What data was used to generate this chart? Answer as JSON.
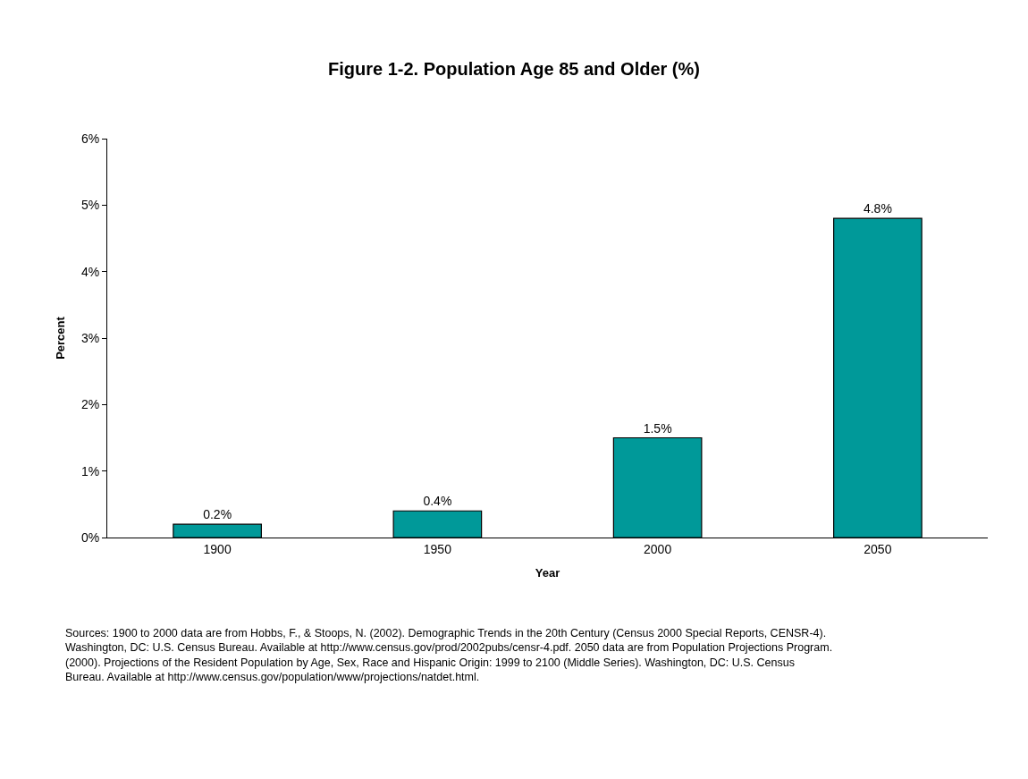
{
  "chart_data": {
    "type": "bar",
    "title": "Figure 1-2. Population Age 85 and Older (%)",
    "xlabel": "Year",
    "ylabel": "Percent",
    "categories": [
      "1900",
      "1950",
      "2000",
      "2050"
    ],
    "values": [
      0.2,
      0.4,
      1.5,
      4.8
    ],
    "value_labels": [
      "0.2%",
      "0.4%",
      "1.5%",
      "4.8%"
    ],
    "color": "#009999",
    "ylim": [
      0,
      6
    ],
    "yticks": [
      {
        "value": 0,
        "label": "0%"
      },
      {
        "value": 1,
        "label": "1%"
      },
      {
        "value": 2,
        "label": "2%"
      },
      {
        "value": 3,
        "label": "3%"
      },
      {
        "value": 4,
        "label": "4%"
      },
      {
        "value": 5,
        "label": "5%"
      },
      {
        "value": 6,
        "label": "6%"
      }
    ],
    "grid": false,
    "legend": false,
    "annotations": [
      "Sources: 1900 to 2000 data are from Hobbs, F., & Stoops, N. (2002). Demographic Trends in the 20th Century (Census 2000 Special Reports, CENSR-4). Washington, DC: U.S. Census Bureau. Available at http://www.census.gov/prod/2002pubs/censr-4.pdf. 2050 data are from Population Projections Program. (2000). Projections of the Resident Population by Age, Sex, Race and Hispanic Origin: 1999 to 2100 (Middle Series). Washington, DC: U.S. Census Bureau. Available at http://www.census.gov/population/www/projections/natdet.html."
    ]
  }
}
